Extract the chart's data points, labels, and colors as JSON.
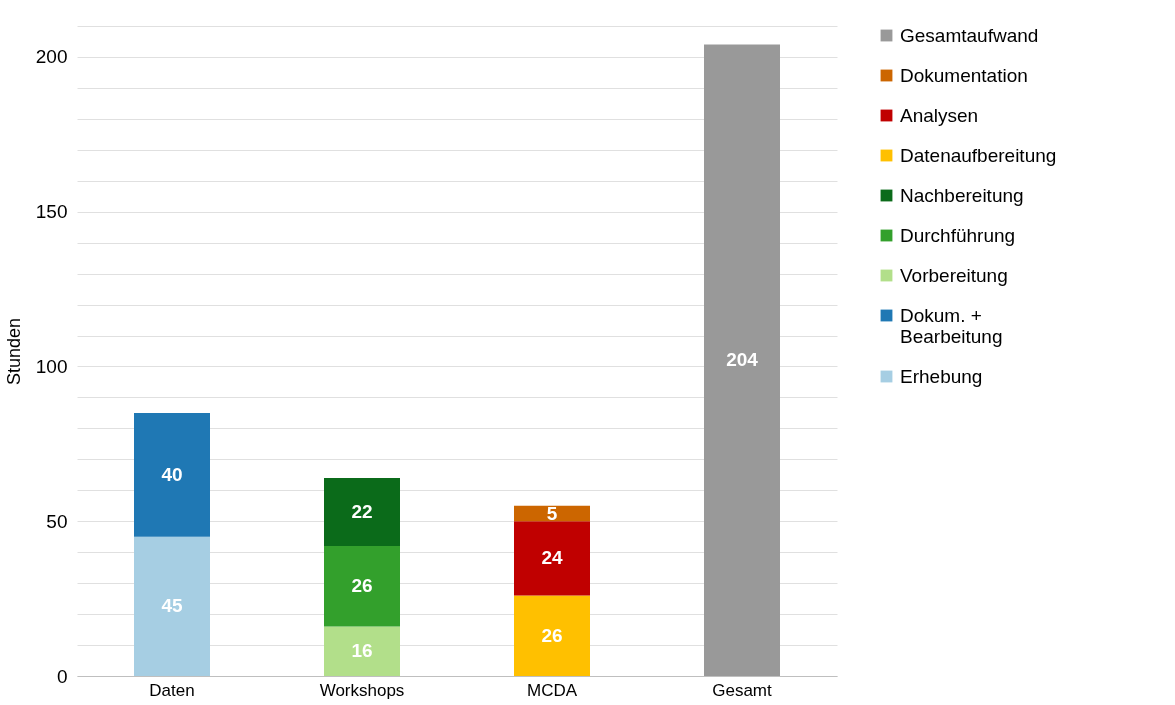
{
  "chart_data": {
    "type": "bar",
    "stacked": true,
    "ylabel": "Stunden",
    "categories": [
      "Daten",
      "Workshops",
      "MCDA",
      "Gesamt"
    ],
    "series": [
      {
        "name": "Erhebung",
        "color": "#a6cee3",
        "values": [
          45,
          null,
          null,
          null
        ]
      },
      {
        "name": "Dokum. +\nBearbeitung",
        "color": "#1f78b4",
        "values": [
          40,
          null,
          null,
          null
        ]
      },
      {
        "name": "Vorbereitung",
        "color": "#b2df8a",
        "values": [
          null,
          16,
          null,
          null
        ]
      },
      {
        "name": "Durchführung",
        "color": "#33a02c",
        "values": [
          null,
          26,
          null,
          null
        ]
      },
      {
        "name": "Nachbereitung",
        "color": "#0b6b1a",
        "values": [
          null,
          22,
          null,
          null
        ]
      },
      {
        "name": "Datenaufbereitung",
        "color": "#ffc000",
        "values": [
          null,
          null,
          26,
          null
        ]
      },
      {
        "name": "Analysen",
        "color": "#c00000",
        "values": [
          null,
          null,
          24,
          null
        ]
      },
      {
        "name": "Dokumentation",
        "color": "#cc6600",
        "values": [
          null,
          null,
          5,
          null
        ]
      },
      {
        "name": "Gesamtaufwand",
        "color": "#999999",
        "values": [
          null,
          null,
          null,
          204
        ]
      }
    ],
    "ylim": [
      0,
      210
    ],
    "yticks": [
      0,
      {
        "value": 10,
        "label": null
      },
      {
        "value": 20,
        "label": null
      },
      {
        "value": 30,
        "label": null
      },
      {
        "value": 40,
        "label": null
      },
      50,
      {
        "value": 60,
        "label": null
      },
      {
        "value": 70,
        "label": null
      },
      {
        "value": 80,
        "label": null
      },
      {
        "value": 90,
        "label": null
      },
      100,
      {
        "value": 110,
        "label": null
      },
      {
        "value": 120,
        "label": null
      },
      {
        "value": 130,
        "label": null
      },
      {
        "value": 140,
        "label": null
      },
      150,
      {
        "value": 160,
        "label": null
      },
      {
        "value": 170,
        "label": null
      },
      {
        "value": 180,
        "label": null
      },
      {
        "value": 190,
        "label": null
      },
      200,
      {
        "value": 210,
        "label": null
      }
    ],
    "grid": "y",
    "legend": "right",
    "data_labels": true
  }
}
